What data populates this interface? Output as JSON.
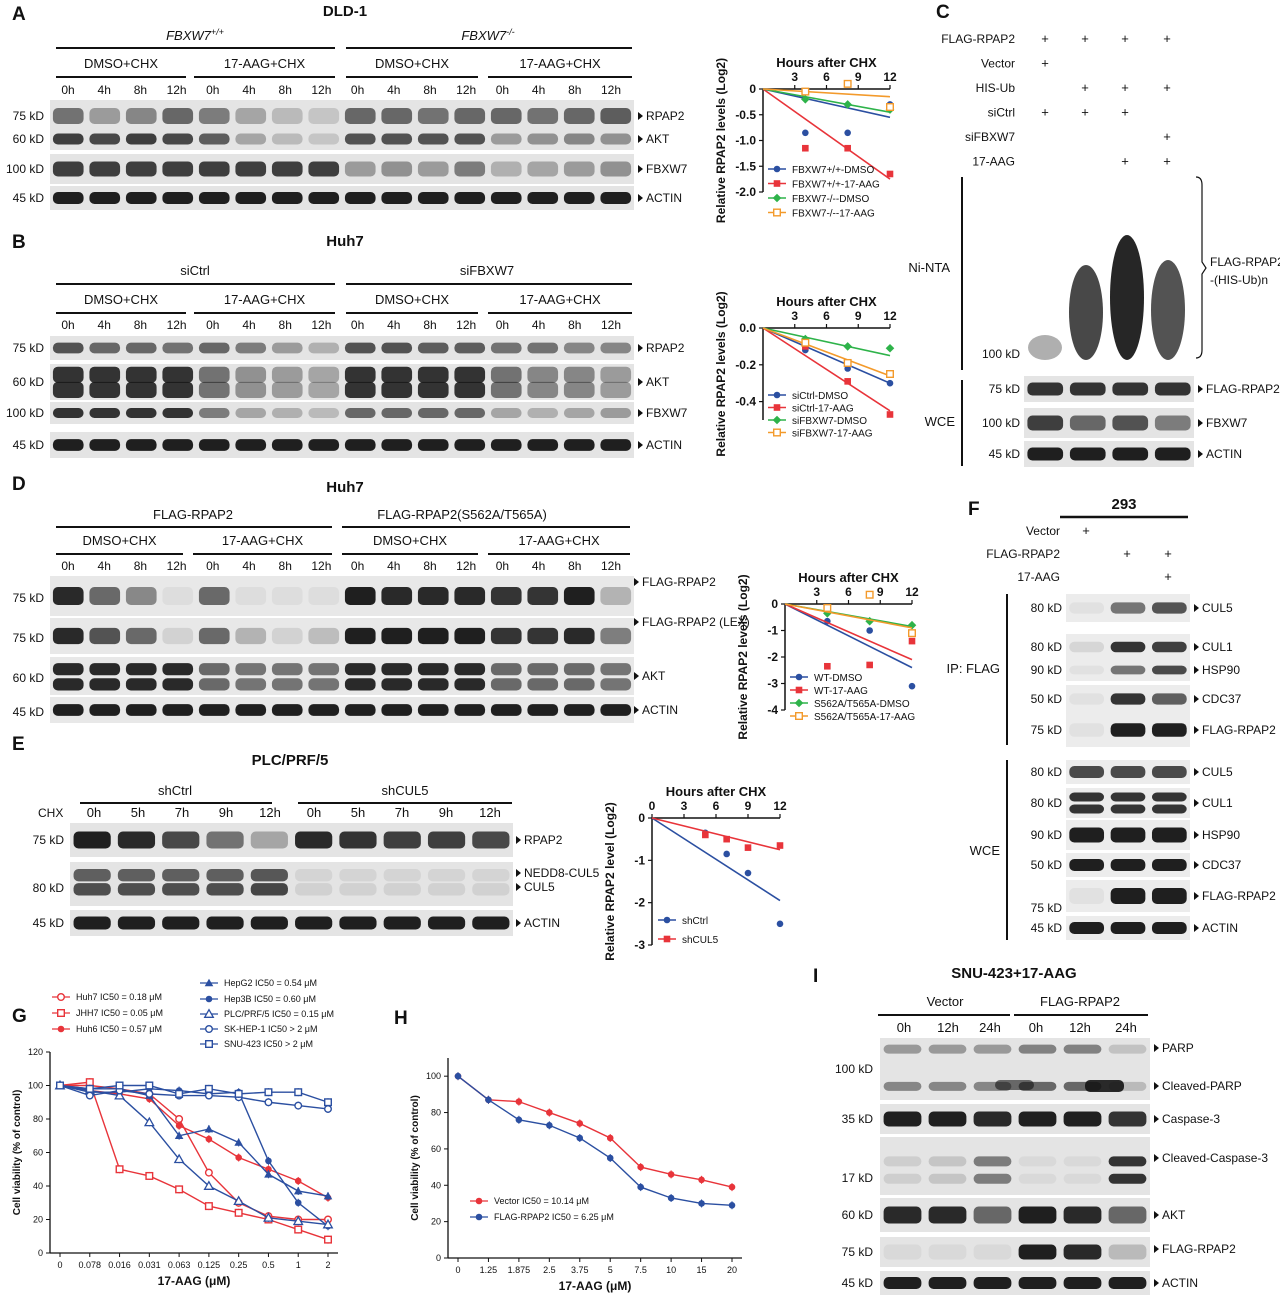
{
  "panels": {
    "A": {
      "letter": "A",
      "title": "DLD-1",
      "genotypes": [
        "FBXW7",
        "FBXW7"
      ],
      "genotype_sup": [
        "+/+",
        "-/-"
      ],
      "treatments": [
        "DMSO+CHX",
        "17-AAG+CHX",
        "DMSO+CHX",
        "17-AAG+CHX"
      ],
      "times": [
        "0h",
        "4h",
        "8h",
        "12h"
      ],
      "blots": [
        {
          "mw": "75 kD",
          "target": "RPAP2"
        },
        {
          "mw": "60 kD",
          "target": "AKT"
        },
        {
          "mw": "100 kD",
          "target": "FBXW7"
        },
        {
          "mw": "45 kD",
          "target": "ACTIN"
        }
      ]
    },
    "B": {
      "letter": "B",
      "title": "Huh7",
      "groups": [
        "siCtrl",
        "siFBXW7"
      ],
      "treatments": [
        "DMSO+CHX",
        "17-AAG+CHX",
        "DMSO+CHX",
        "17-AAG+CHX"
      ],
      "times": [
        "0h",
        "4h",
        "8h",
        "12h"
      ],
      "blots": [
        {
          "mw": "75 kD",
          "target": "RPAP2"
        },
        {
          "mw": "60 kD",
          "target": "AKT"
        },
        {
          "mw": "100 kD",
          "target": "FBXW7"
        },
        {
          "mw": "45 kD",
          "target": "ACTIN"
        }
      ]
    },
    "C": {
      "letter": "C",
      "rows": [
        {
          "label": "FLAG-RPAP2",
          "marks": [
            "+",
            "+",
            "+",
            "+"
          ]
        },
        {
          "label": "Vector",
          "marks": [
            "+",
            "",
            "",
            ""
          ]
        },
        {
          "label": "HIS-Ub",
          "marks": [
            "",
            "+",
            "+",
            "+"
          ]
        },
        {
          "label": "siCtrl",
          "marks": [
            "+",
            "+",
            "+",
            ""
          ]
        },
        {
          "label": "siFBXW7",
          "marks": [
            "",
            "",
            "",
            "+"
          ]
        },
        {
          "label": "17-AAG",
          "marks": [
            "",
            "",
            "+",
            "+"
          ]
        }
      ],
      "ni_label": "Ni-NTA",
      "ni_mw": "100 kD",
      "ni_product": [
        "FLAG-RPAP2",
        "-(HIS-Ub)n"
      ],
      "wce_label": "WCE",
      "wce_blots": [
        {
          "mw": "75 kD",
          "target": "FLAG-RPAP2"
        },
        {
          "mw": "100 kD",
          "target": "FBXW7"
        },
        {
          "mw": "45 kD",
          "target": "ACTIN"
        }
      ]
    },
    "D": {
      "letter": "D",
      "title": "Huh7",
      "groups": [
        "FLAG-RPAP2",
        "FLAG-RPAP2(S562A/T565A)"
      ],
      "treatments": [
        "DMSO+CHX",
        "17-AAG+CHX",
        "DMSO+CHX",
        "17-AAG+CHX"
      ],
      "times": [
        "0h",
        "4h",
        "8h",
        "12h"
      ],
      "blots": [
        {
          "mw": "75 kD",
          "target": "FLAG-RPAP2"
        },
        {
          "mw": "75 kD",
          "target": "FLAG-RPAP2 (LEX)"
        },
        {
          "mw": "60 kD",
          "target": "AKT"
        },
        {
          "mw": "45 kD",
          "target": "ACTIN"
        }
      ]
    },
    "E": {
      "letter": "E",
      "title": "PLC/PRF/5",
      "groups": [
        "shCtrl",
        "shCUL5"
      ],
      "chx": "CHX",
      "times": [
        "0h",
        "5h",
        "7h",
        "9h",
        "12h"
      ],
      "blots": [
        {
          "mw": "75 kD",
          "target": "RPAP2"
        },
        {
          "mw": "80 kD",
          "target": "NEDD8-CUL5",
          "target2": "CUL5"
        },
        {
          "mw": "45 kD",
          "target": "ACTIN"
        }
      ]
    },
    "F": {
      "letter": "F",
      "title": "293",
      "rows": [
        {
          "label": "Vector",
          "marks": [
            "+",
            "",
            ""
          ]
        },
        {
          "label": "FLAG-RPAP2",
          "marks": [
            "",
            "+",
            "+"
          ]
        },
        {
          "label": "17-AAG",
          "marks": [
            "",
            "",
            "+"
          ]
        }
      ],
      "ip_label": "IP: FLAG",
      "ip_blots": [
        {
          "mw": "80 kD",
          "target": "CUL5"
        },
        {
          "mw": "80 kD",
          "target": "CUL1"
        },
        {
          "mw": "90 kD",
          "target": "HSP90"
        },
        {
          "mw": "50 kD",
          "target": "CDC37"
        },
        {
          "mw": "75 kD",
          "target": "FLAG-RPAP2"
        }
      ],
      "wce_label": "WCE",
      "wce_blots": [
        {
          "mw": "80 kD",
          "target": "CUL5"
        },
        {
          "mw": "80 kD",
          "target": "CUL1"
        },
        {
          "mw": "90 kD",
          "target": "HSP90"
        },
        {
          "mw": "50 kD",
          "target": "CDC37"
        },
        {
          "mw": "75 kD",
          "target": "FLAG-RPAP2"
        },
        {
          "mw": "45 kD",
          "target": "ACTIN"
        }
      ]
    },
    "G": {
      "letter": "G"
    },
    "H": {
      "letter": "H"
    },
    "I": {
      "letter": "I",
      "title": "SNU-423+17-AAG",
      "groups": [
        "Vector",
        "FLAG-RPAP2"
      ],
      "times": [
        "0h",
        "12h",
        "24h"
      ],
      "blots": [
        {
          "mw": "",
          "target": "PARP",
          "mw2": "100 kD",
          "target2": "Cleaved-PARP"
        },
        {
          "mw": "35 kD",
          "target": "Caspase-3"
        },
        {
          "mw": "",
          "target": "Cleaved-Caspase-3",
          "mw2": "17 kD"
        },
        {
          "mw": "60 kD",
          "target": "AKT"
        },
        {
          "mw": "75 kD",
          "target": "FLAG-RPAP2"
        },
        {
          "mw": "45 kD",
          "target": "ACTIN"
        }
      ]
    }
  },
  "chart_data": [
    {
      "id": "A-plot",
      "type": "scatter",
      "title": "Hours after CHX",
      "ylabel": "Relative RPAP2 levels (Log2)",
      "xticks": [
        3,
        6,
        9,
        12
      ],
      "yticks": [
        0,
        -0.5,
        -1.0,
        -1.5,
        -2.0
      ],
      "xlim": [
        0,
        12
      ],
      "ylim": [
        -2.0,
        0
      ],
      "legend_placement": "bottom-left",
      "series": [
        {
          "name": "FBXW7+/+-DMSO",
          "color": "#2b4fa1",
          "marker": "circle",
          "x": [
            0,
            4,
            8,
            12
          ],
          "y": [
            0,
            -0.85,
            -0.85,
            -0.3
          ],
          "fit": [
            0,
            -0.55
          ]
        },
        {
          "name": "FBXW7+/+-17-AAG",
          "color": "#e8343a",
          "marker": "square",
          "x": [
            0,
            4,
            8,
            12
          ],
          "y": [
            0,
            -1.15,
            -1.15,
            -1.65
          ],
          "fit": [
            0,
            -1.75
          ]
        },
        {
          "name": "FBXW7-/--DMSO",
          "color": "#2eb34a",
          "marker": "diamond",
          "x": [
            0,
            4,
            8,
            12
          ],
          "y": [
            0,
            -0.2,
            -0.3,
            -0.4
          ],
          "fit": [
            0,
            -0.45
          ]
        },
        {
          "name": "FBXW7-/--17-AAG",
          "color": "#f39a2b",
          "marker": "open-square",
          "x": [
            0,
            4,
            8,
            12
          ],
          "y": [
            0,
            -0.05,
            0.1,
            -0.35
          ],
          "fit": [
            0,
            -0.15
          ]
        }
      ]
    },
    {
      "id": "B-plot",
      "type": "scatter",
      "title": "Hours after CHX",
      "ylabel": "Relative RPAP2 levels (Log2)",
      "xticks": [
        3,
        6,
        9,
        12
      ],
      "yticks": [
        0.0,
        -0.2,
        -0.4
      ],
      "xlim": [
        0,
        12
      ],
      "ylim": [
        -0.5,
        0
      ],
      "legend_placement": "bottom-left",
      "series": [
        {
          "name": "siCtrl-DMSO",
          "color": "#2b4fa1",
          "marker": "circle",
          "x": [
            0,
            4,
            8,
            12
          ],
          "y": [
            0,
            -0.12,
            -0.22,
            -0.3
          ],
          "fit": [
            0,
            -0.3
          ]
        },
        {
          "name": "siCtrl-17-AAG",
          "color": "#e8343a",
          "marker": "square",
          "x": [
            0,
            4,
            8,
            12
          ],
          "y": [
            0,
            -0.1,
            -0.29,
            -0.47
          ],
          "fit": [
            0,
            -0.45
          ]
        },
        {
          "name": "siFBXW7-DMSO",
          "color": "#2eb34a",
          "marker": "diamond",
          "x": [
            0,
            4,
            8,
            12
          ],
          "y": [
            0,
            -0.06,
            -0.1,
            -0.11
          ],
          "fit": [
            0,
            -0.15
          ]
        },
        {
          "name": "siFBXW7-17-AAG",
          "color": "#f39a2b",
          "marker": "open-square",
          "x": [
            0,
            4,
            8,
            12
          ],
          "y": [
            0,
            -0.08,
            -0.19,
            -0.25
          ],
          "fit": [
            0,
            -0.26
          ]
        }
      ]
    },
    {
      "id": "D-plot",
      "type": "scatter",
      "title": "Hours after CHX",
      "ylabel": "Relative RPAP2 levels (Log2)",
      "xticks": [
        3,
        6,
        9,
        12
      ],
      "yticks": [
        0,
        -1,
        -2,
        -3,
        -4
      ],
      "xlim": [
        0,
        12
      ],
      "ylim": [
        -4,
        0
      ],
      "legend_placement": "bottom-left",
      "series": [
        {
          "name": "WT-DMSO",
          "color": "#2b4fa1",
          "marker": "circle",
          "x": [
            0,
            4,
            8,
            12
          ],
          "y": [
            0,
            -0.65,
            -1.0,
            -3.1
          ],
          "fit": [
            0,
            -2.4
          ]
        },
        {
          "name": "WT-17-AAG",
          "color": "#e8343a",
          "marker": "square",
          "x": [
            0,
            4,
            8,
            12
          ],
          "y": [
            0,
            -2.35,
            -2.3,
            -1.4
          ],
          "fit": [
            0,
            -2.1
          ]
        },
        {
          "name": "S562A/T565A-DMSO",
          "color": "#2eb34a",
          "marker": "diamond",
          "x": [
            0,
            4,
            8,
            12
          ],
          "y": [
            0,
            -0.35,
            -0.65,
            -0.8
          ],
          "fit": [
            0,
            -0.85
          ]
        },
        {
          "name": "S562A/T565A-17-AAG",
          "color": "#f39a2b",
          "marker": "open-square",
          "x": [
            0,
            4,
            8,
            12
          ],
          "y": [
            0,
            -0.15,
            0.35,
            -1.1
          ],
          "fit": [
            0,
            -0.9
          ]
        }
      ]
    },
    {
      "id": "E-plot",
      "type": "scatter",
      "title": "Hours after CHX",
      "ylabel": "Relative RPAP2 level (Log2)",
      "xticks": [
        0,
        3,
        6,
        9,
        12
      ],
      "yticks": [
        0,
        -1,
        -2,
        -3
      ],
      "xlim": [
        0,
        12
      ],
      "ylim": [
        -3,
        0
      ],
      "legend_placement": "bottom-left",
      "series": [
        {
          "name": "shCtrl",
          "color": "#2b4fa1",
          "marker": "circle",
          "x": [
            0,
            5,
            7,
            9,
            12
          ],
          "y": [
            0,
            -0.35,
            -0.85,
            -1.3,
            -2.5
          ],
          "fit": [
            0,
            -1.95
          ]
        },
        {
          "name": "shCUL5",
          "color": "#e8343a",
          "marker": "square",
          "x": [
            0,
            5,
            7,
            9,
            12
          ],
          "y": [
            0,
            -0.4,
            -0.5,
            -0.7,
            -0.65
          ],
          "fit": [
            0,
            -0.75
          ]
        }
      ]
    },
    {
      "id": "G-plot",
      "type": "line",
      "ylabel": "Cell viability (% of control)",
      "xlabel": "17-AAG (μM)",
      "categories": [
        "0",
        "0.078",
        "0.016",
        "0.031",
        "0.063",
        "0.125",
        "0.25",
        "0.5",
        "1",
        "2"
      ],
      "yticks": [
        0,
        20,
        40,
        60,
        80,
        100,
        120
      ],
      "ylim": [
        0,
        120
      ],
      "legend_placement": "top",
      "series": [
        {
          "name": "Huh7",
          "ic": "IC50 = 0.18 μM",
          "color": "#e8343a",
          "marker": "open-circle",
          "values": [
            100,
            100,
            98,
            95,
            80,
            48,
            30,
            22,
            20,
            20
          ]
        },
        {
          "name": "JHH7",
          "ic": "IC50 = 0.05 μM",
          "color": "#e8343a",
          "marker": "open-square",
          "values": [
            100,
            102,
            50,
            46,
            38,
            28,
            24,
            20,
            14,
            8
          ]
        },
        {
          "name": "Huh6",
          "ic": "IC50 = 0.57 μM",
          "color": "#e8343a",
          "marker": "circle",
          "values": [
            100,
            97,
            95,
            92,
            76,
            68,
            57,
            50,
            43,
            33
          ]
        },
        {
          "name": "HepG2",
          "ic": "IC50 = 0.54 μM",
          "color": "#2b4fa1",
          "marker": "triangle",
          "values": [
            100,
            98,
            98,
            94,
            70,
            74,
            66,
            47,
            37,
            34
          ]
        },
        {
          "name": "Hep3B",
          "ic": "IC50 = 0.60 μM",
          "color": "#2b4fa1",
          "marker": "circle",
          "values": [
            100,
            96,
            96,
            98,
            97,
            95,
            96,
            55,
            30,
            16
          ]
        },
        {
          "name": "PLC/PRF/5",
          "ic": "IC50 = 0.15 μM",
          "color": "#2b4fa1",
          "marker": "open-triangle",
          "values": [
            100,
            97,
            94,
            78,
            56,
            40,
            31,
            21,
            19,
            17
          ]
        },
        {
          "name": "SK-HEP-1",
          "ic": "IC50 > 2 μM",
          "color": "#2b4fa1",
          "marker": "open-circle",
          "values": [
            100,
            94,
            97,
            95,
            94,
            94,
            93,
            90,
            88,
            86
          ]
        },
        {
          "name": "SNU-423",
          "ic": "IC50 > 2 μM",
          "color": "#2b4fa1",
          "marker": "open-square",
          "values": [
            100,
            98,
            100,
            100,
            95,
            98,
            95,
            96,
            96,
            90
          ]
        }
      ]
    },
    {
      "id": "H-plot",
      "type": "line",
      "ylabel": "Cell viability (% of control)",
      "xlabel": "17-AAG (μM)",
      "categories": [
        "0",
        "1.25",
        "1.875",
        "2.5",
        "3.75",
        "5",
        "7.5",
        "10",
        "15",
        "20"
      ],
      "yticks": [
        0,
        20,
        40,
        60,
        80,
        100
      ],
      "ylim": [
        0,
        110
      ],
      "legend_placement": "bottom-left",
      "series": [
        {
          "name": "Vector",
          "ic": "IC50 = 10.14 μM",
          "color": "#e8343a",
          "marker": "circle",
          "values": [
            100,
            87,
            86,
            80,
            74,
            66,
            50,
            46,
            43,
            39
          ]
        },
        {
          "name": "FLAG-RPAP2",
          "ic": "IC50 = 6.25 μM",
          "color": "#2b4fa1",
          "marker": "circle",
          "values": [
            100,
            87,
            76,
            73,
            66,
            55,
            39,
            33,
            30,
            29
          ]
        }
      ]
    }
  ]
}
